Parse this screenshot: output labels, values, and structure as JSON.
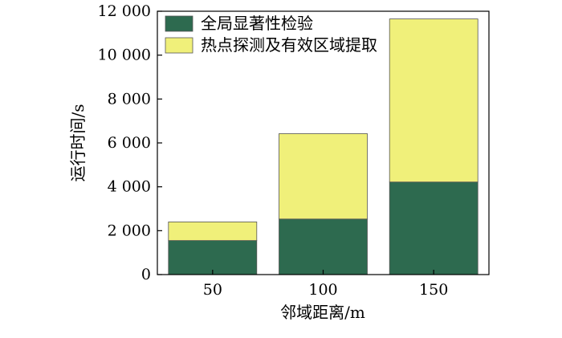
{
  "chart_data": {
    "type": "bar",
    "stacked": true,
    "categories": [
      "50",
      "100",
      "150"
    ],
    "series": [
      {
        "name": "全局显著性检验",
        "values": [
          1550,
          2530,
          4220
        ],
        "color": "#2d6a4f"
      },
      {
        "name": "热点探测及有效区域提取",
        "values": [
          850,
          3890,
          7430
        ],
        "color": "#f0f07a"
      }
    ],
    "xlabel": "邻域距离/m",
    "ylabel": "运行时间/s",
    "ylim": [
      0,
      12000
    ],
    "yticks": [
      0,
      2000,
      4000,
      6000,
      8000,
      10000,
      12000
    ],
    "ytick_labels": [
      "0",
      "2 000",
      "4 000",
      "6 000",
      "8 000",
      "10 000",
      "12 000"
    ],
    "grid": false,
    "legend_position": "top-left"
  }
}
